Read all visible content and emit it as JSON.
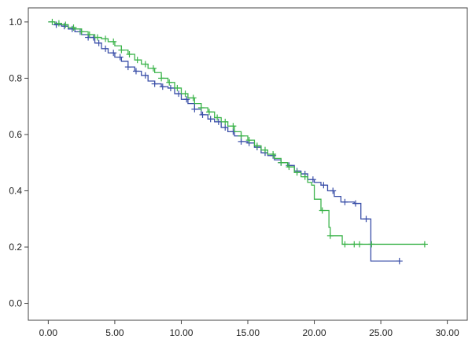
{
  "chart_data": {
    "type": "line",
    "subtype": "kaplan-meier survival curve",
    "title": "",
    "xlabel": "",
    "ylabel": "",
    "xlim": [
      -1.5,
      31.5
    ],
    "ylim": [
      -0.06,
      1.05
    ],
    "x_ticks": [
      0,
      5,
      10,
      15,
      20,
      25,
      30
    ],
    "x_tick_labels": [
      "0.00",
      "5.00",
      "10.00",
      "15.00",
      "20.00",
      "25.00",
      "30.00"
    ],
    "y_ticks": [
      0,
      0.2,
      0.4,
      0.6,
      0.8,
      1.0
    ],
    "y_tick_labels": [
      "0.0",
      "0.2",
      "0.4",
      "0.6",
      "0.8",
      "1.0"
    ],
    "grid": false,
    "legend": "none",
    "series": [
      {
        "color": "#3a4fa8",
        "points": [
          [
            0,
            1.0
          ],
          [
            0.5,
            0.99
          ],
          [
            1.0,
            0.985
          ],
          [
            1.5,
            0.975
          ],
          [
            2.0,
            0.965
          ],
          [
            2.5,
            0.955
          ],
          [
            3.0,
            0.945
          ],
          [
            3.5,
            0.925
          ],
          [
            4.0,
            0.905
          ],
          [
            4.5,
            0.89
          ],
          [
            5.0,
            0.875
          ],
          [
            5.5,
            0.86
          ],
          [
            6.0,
            0.84
          ],
          [
            6.5,
            0.825
          ],
          [
            7.0,
            0.81
          ],
          [
            7.5,
            0.79
          ],
          [
            8.0,
            0.78
          ],
          [
            8.5,
            0.77
          ],
          [
            9.0,
            0.765
          ],
          [
            9.5,
            0.745
          ],
          [
            10.0,
            0.725
          ],
          [
            10.5,
            0.71
          ],
          [
            11.0,
            0.69
          ],
          [
            11.5,
            0.67
          ],
          [
            12.0,
            0.655
          ],
          [
            12.5,
            0.645
          ],
          [
            13.0,
            0.625
          ],
          [
            13.5,
            0.61
          ],
          [
            14.0,
            0.595
          ],
          [
            14.5,
            0.575
          ],
          [
            15.0,
            0.57
          ],
          [
            15.5,
            0.555
          ],
          [
            16.0,
            0.535
          ],
          [
            16.5,
            0.525
          ],
          [
            17.0,
            0.51
          ],
          [
            17.5,
            0.5
          ],
          [
            18.0,
            0.49
          ],
          [
            18.5,
            0.47
          ],
          [
            19.0,
            0.46
          ],
          [
            19.5,
            0.44
          ],
          [
            20.0,
            0.43
          ],
          [
            20.5,
            0.42
          ],
          [
            21.0,
            0.4
          ],
          [
            21.5,
            0.38
          ],
          [
            22.0,
            0.36
          ],
          [
            23.0,
            0.355
          ],
          [
            23.5,
            0.3
          ],
          [
            24.2,
            0.3
          ],
          [
            24.25,
            0.15
          ],
          [
            26.4,
            0.15
          ]
        ],
        "censor_x": [
          0.6,
          1.2,
          1.8,
          2.4,
          3.0,
          3.4,
          3.8,
          4.3,
          4.9,
          5.4,
          6.0,
          6.6,
          7.3,
          8.0,
          8.6,
          9.2,
          9.8,
          10.4,
          11.0,
          11.6,
          12.2,
          12.8,
          13.3,
          13.9,
          14.5,
          15.1,
          15.7,
          16.3,
          16.9,
          17.5,
          18.1,
          18.7,
          19.3,
          19.9,
          20.7,
          21.4,
          22.3,
          23.1,
          23.9,
          26.4
        ]
      },
      {
        "color": "#3cb44b",
        "points": [
          [
            0,
            1.0
          ],
          [
            0.5,
            0.995
          ],
          [
            1.0,
            0.99
          ],
          [
            1.5,
            0.98
          ],
          [
            2.0,
            0.975
          ],
          [
            2.5,
            0.965
          ],
          [
            3.0,
            0.955
          ],
          [
            3.5,
            0.945
          ],
          [
            4.0,
            0.94
          ],
          [
            4.5,
            0.93
          ],
          [
            5.0,
            0.915
          ],
          [
            5.5,
            0.9
          ],
          [
            6.0,
            0.885
          ],
          [
            6.5,
            0.865
          ],
          [
            7.0,
            0.85
          ],
          [
            7.5,
            0.835
          ],
          [
            8.0,
            0.82
          ],
          [
            8.5,
            0.8
          ],
          [
            9.0,
            0.785
          ],
          [
            9.5,
            0.765
          ],
          [
            10.0,
            0.745
          ],
          [
            10.5,
            0.73
          ],
          [
            11.0,
            0.71
          ],
          [
            11.5,
            0.695
          ],
          [
            12.0,
            0.68
          ],
          [
            12.5,
            0.66
          ],
          [
            13.0,
            0.645
          ],
          [
            13.5,
            0.63
          ],
          [
            14.0,
            0.61
          ],
          [
            14.5,
            0.595
          ],
          [
            15.0,
            0.58
          ],
          [
            15.5,
            0.56
          ],
          [
            16.0,
            0.545
          ],
          [
            16.5,
            0.53
          ],
          [
            17.0,
            0.515
          ],
          [
            17.5,
            0.5
          ],
          [
            18.0,
            0.485
          ],
          [
            18.5,
            0.465
          ],
          [
            19.0,
            0.45
          ],
          [
            19.5,
            0.43
          ],
          [
            19.8,
            0.42
          ],
          [
            20.0,
            0.37
          ],
          [
            20.5,
            0.33
          ],
          [
            21.0,
            0.33
          ],
          [
            21.1,
            0.27
          ],
          [
            21.2,
            0.24
          ],
          [
            21.4,
            0.24
          ],
          [
            22.0,
            0.24
          ],
          [
            22.1,
            0.21
          ],
          [
            28.3,
            0.21
          ]
        ],
        "censor_x": [
          0.3,
          0.8,
          1.3,
          1.9,
          2.5,
          3.1,
          3.7,
          4.3,
          4.9,
          5.5,
          6.1,
          6.7,
          7.3,
          7.9,
          8.5,
          9.1,
          9.7,
          10.3,
          10.9,
          11.5,
          12.1,
          12.7,
          13.3,
          13.9,
          14.5,
          15.1,
          15.7,
          16.3,
          16.9,
          17.5,
          18.1,
          18.7,
          19.3,
          20.6,
          21.2,
          22.3,
          23.0,
          23.4,
          24.3,
          28.3
        ]
      }
    ]
  }
}
